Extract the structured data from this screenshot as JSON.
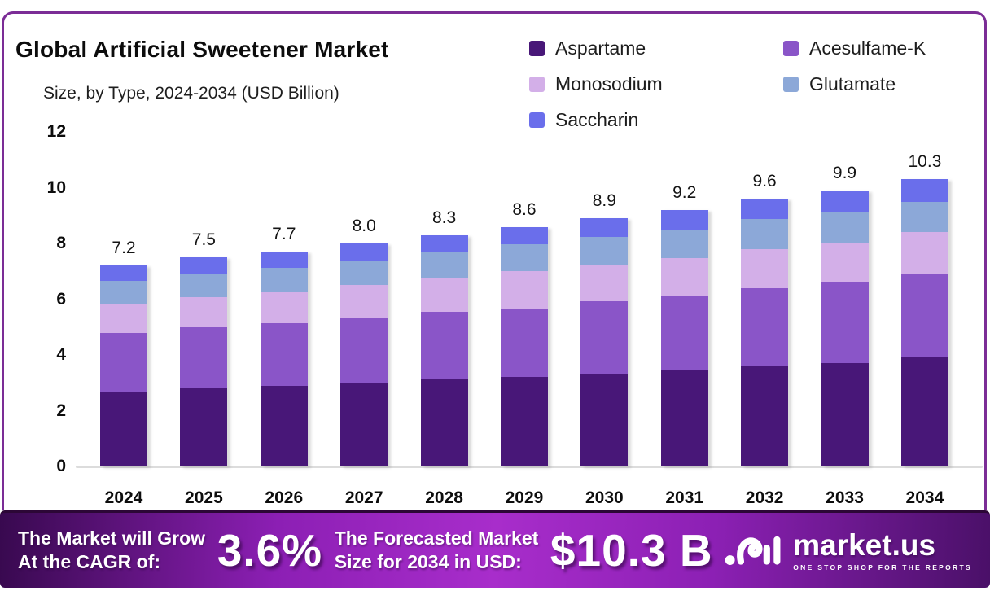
{
  "header": {
    "title": "Global Artificial Sweetener Market",
    "subtitle": "Size, by Type, 2024-2034 (USD Billion)"
  },
  "chart_data": {
    "type": "bar",
    "stacked": true,
    "title": "Global Artificial Sweetener Market",
    "subtitle": "Size, by Type, 2024-2034 (USD Billion)",
    "categories": [
      "2024",
      "2025",
      "2026",
      "2027",
      "2028",
      "2029",
      "2030",
      "2031",
      "2032",
      "2033",
      "2034"
    ],
    "series": [
      {
        "name": "Aspartame",
        "color": "#481778",
        "values": [
          2.7,
          2.81,
          2.89,
          3.0,
          3.12,
          3.21,
          3.34,
          3.45,
          3.6,
          3.71,
          3.9
        ]
      },
      {
        "name": "Acesulfame-K",
        "color": "#8A55C8",
        "values": [
          2.1,
          2.19,
          2.25,
          2.33,
          2.42,
          2.47,
          2.6,
          2.68,
          2.8,
          2.89,
          3.0
        ]
      },
      {
        "name": "Monosodium",
        "color": "#D3AFE8",
        "values": [
          1.05,
          1.09,
          1.11,
          1.17,
          1.21,
          1.32,
          1.3,
          1.34,
          1.4,
          1.44,
          1.5
        ]
      },
      {
        "name": "Glutamate",
        "color": "#8CA8D8",
        "values": [
          0.8,
          0.83,
          0.86,
          0.89,
          0.92,
          0.97,
          0.99,
          1.02,
          1.07,
          1.1,
          1.1
        ]
      },
      {
        "name": "Saccharin",
        "color": "#6A6EEB",
        "values": [
          0.55,
          0.58,
          0.59,
          0.61,
          0.63,
          0.63,
          0.67,
          0.71,
          0.73,
          0.76,
          0.8
        ]
      }
    ],
    "totals": [
      7.2,
      7.5,
      7.7,
      8.0,
      8.3,
      8.6,
      8.9,
      9.2,
      9.6,
      9.9,
      10.3
    ],
    "xlabel": "",
    "ylabel": "",
    "ylim": [
      0,
      12
    ],
    "yticks": [
      0,
      2,
      4,
      6,
      8,
      10,
      12
    ],
    "grid": false,
    "legend_position": "top-right"
  },
  "banner": {
    "cagr_label_line1": "The Market will Grow",
    "cagr_label_line2": "At the CAGR of:",
    "cagr_value": "3.6%",
    "forecast_label_line1": "The Forecasted Market",
    "forecast_label_line2": "Size for 2034 in USD:",
    "forecast_value": "$10.3 B",
    "brand_name": "market.us",
    "brand_tagline": "ONE STOP SHOP FOR THE REPORTS"
  },
  "colors": {
    "card_border": "#7B2D96",
    "axis_line": "#DCDCDC",
    "banner_gradient": [
      "#38094F",
      "#8C1FB4",
      "#A82DCB",
      "#8C20B4",
      "#4A1068"
    ]
  }
}
